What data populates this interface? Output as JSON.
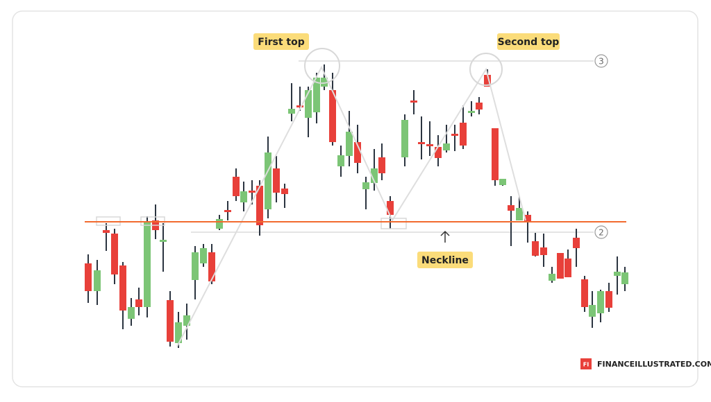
{
  "labels": {
    "first_top": "First top",
    "second_top": "Second top",
    "neckline": "Neckline"
  },
  "markers": [
    "3",
    "2"
  ],
  "logo": {
    "icon": "FI",
    "text": "FINANCEILLUSTRATED.COM"
  }
}
